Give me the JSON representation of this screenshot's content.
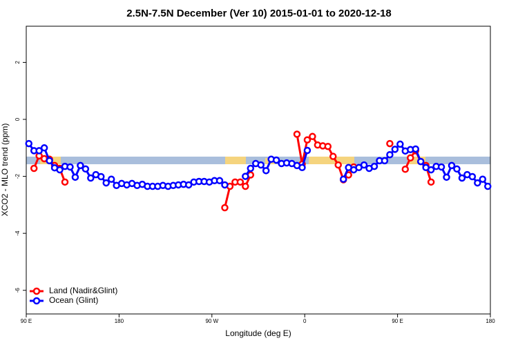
{
  "chart_data": {
    "type": "line",
    "title": "2.5N-7.5N December (Ver 10)   2015-01-01 to 2020-12-18",
    "x_label": "Longitude (deg E)",
    "y_label": "XCO2 - MLO trend (ppm)",
    "x": [
      92.5,
      97.5,
      102.5,
      107.5,
      112.5,
      117.5,
      122.5,
      127.5,
      132.5,
      137.5,
      142.5,
      147.5,
      152.5,
      157.5,
      162.5,
      167.5,
      172.5,
      177.5,
      182.5,
      187.5,
      192.5,
      197.5,
      202.5,
      207.5,
      212.5,
      217.5,
      222.5,
      227.5,
      232.5,
      237.5,
      242.5,
      247.5,
      252.5,
      257.5,
      262.5,
      267.5,
      272.5,
      277.5,
      282.5,
      287.5,
      292.5,
      297.5,
      302.5,
      307.5,
      312.5,
      317.5,
      322.5,
      327.5,
      332.5,
      337.5,
      342.5,
      347.5,
      352.5,
      357.5,
      362.5,
      367.5,
      372.5,
      377.5,
      382.5,
      387.5,
      392.5,
      397.5,
      402.5,
      407.5,
      412.5,
      417.5,
      422.5,
      427.5,
      432.5,
      437.5,
      442.5,
      447.5,
      452.5,
      457.5,
      462.5,
      467.5,
      472.5,
      477.5,
      482.5,
      487.5,
      492.5,
      497.5,
      502.5,
      507.5,
      512.5,
      517.5,
      522.5,
      527.5,
      532.5,
      537.5
    ],
    "series": [
      {
        "name": "Land (Nadir&Glint)",
        "color": "#ff0000",
        "values": [
          null,
          -1.72,
          -1.28,
          -1.38,
          -1.4,
          -1.62,
          -1.72,
          -2.2,
          null,
          null,
          null,
          null,
          null,
          null,
          null,
          null,
          null,
          null,
          null,
          null,
          null,
          null,
          null,
          null,
          null,
          null,
          null,
          null,
          null,
          null,
          null,
          null,
          null,
          null,
          null,
          null,
          null,
          null,
          -3.1,
          -2.35,
          -2.2,
          -2.2,
          -2.35,
          -1.95,
          null,
          null,
          null,
          null,
          null,
          null,
          null,
          null,
          -0.52,
          -1.57,
          -0.72,
          -0.6,
          -0.9,
          -0.93,
          -0.95,
          -1.3,
          -1.6,
          -2.12,
          -1.95,
          -1.67,
          null,
          null,
          null,
          null,
          null,
          null,
          -0.85,
          null,
          null,
          -1.75,
          -1.35,
          -1.1,
          -1.48,
          -1.62,
          -2.2,
          null,
          null,
          null,
          null,
          null,
          null,
          null,
          null,
          null,
          null,
          null
        ]
      },
      {
        "name": "Ocean (Glint)",
        "color": "#0000ff",
        "values": [
          -0.85,
          -1.1,
          -1.1,
          -1.0,
          -1.45,
          -1.7,
          -1.77,
          -1.65,
          -1.67,
          -2.03,
          -1.62,
          -1.74,
          -2.06,
          -1.94,
          -2.01,
          -2.23,
          -2.1,
          -2.32,
          -2.25,
          -2.3,
          -2.25,
          -2.32,
          -2.28,
          -2.35,
          -2.35,
          -2.35,
          -2.32,
          -2.35,
          -2.32,
          -2.3,
          -2.28,
          -2.3,
          -2.2,
          -2.18,
          -2.18,
          -2.2,
          -2.15,
          -2.15,
          -2.3,
          null,
          null,
          null,
          -2.0,
          -1.72,
          -1.55,
          -1.6,
          -1.8,
          -1.4,
          -1.43,
          -1.55,
          -1.53,
          -1.55,
          -1.62,
          -1.69,
          -1.09,
          null,
          null,
          null,
          null,
          null,
          null,
          -2.1,
          -1.69,
          -1.77,
          -1.69,
          -1.6,
          -1.72,
          -1.65,
          -1.45,
          -1.45,
          -1.24,
          -1.05,
          -0.87,
          -1.11,
          -1.06,
          -1.04,
          -1.48,
          -1.69,
          -1.77,
          -1.65,
          -1.67,
          -2.03,
          -1.62,
          -1.74,
          -2.06,
          -1.94,
          -2.01,
          -2.23,
          -2.1,
          -2.35
        ]
      }
    ],
    "xlim": [
      90,
      540
    ],
    "ylim": [
      -6.83,
      3.27
    ],
    "xticks": [
      {
        "value": 90,
        "label": "90 E"
      },
      180,
      {
        "value": 270,
        "label": "90 W"
      },
      {
        "value": 360,
        "label": "0"
      },
      {
        "value": 450,
        "label": "90 E"
      },
      {
        "value": 540,
        "label": "180"
      }
    ],
    "yticks": [
      -6,
      -4,
      -2,
      0,
      2
    ],
    "legend": "bottom-left"
  }
}
